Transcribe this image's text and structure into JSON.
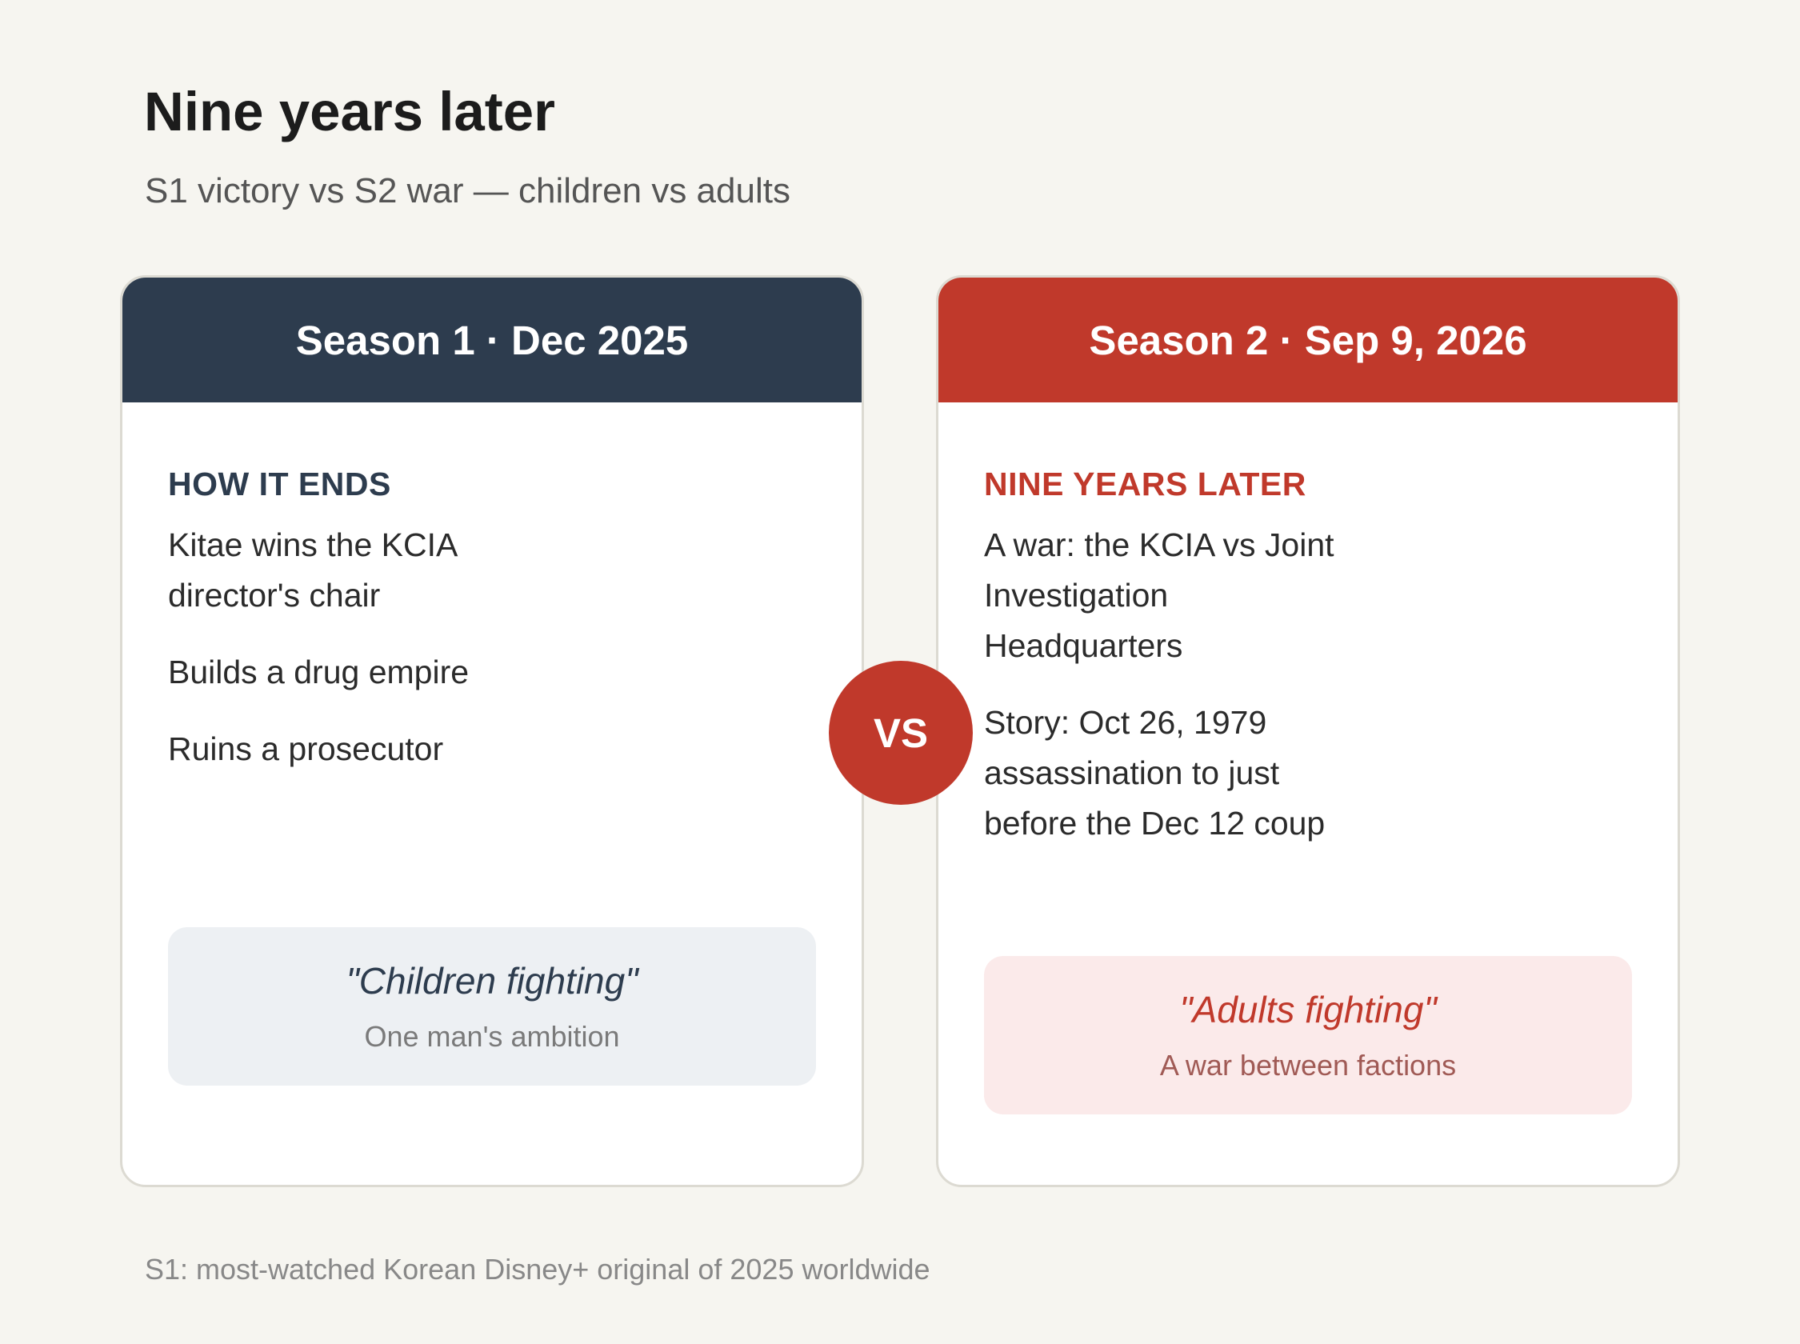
{
  "title": "Nine years later",
  "subtitle": "S1 victory vs S2 war — children vs adults",
  "season1": {
    "header": "Season 1 · Dec 2025",
    "section_label": "HOW IT ENDS",
    "points": [
      "Kitae wins the KCIA director's chair",
      "Builds a drug empire",
      "Ruins a prosecutor"
    ],
    "quote": "\"Children fighting\"",
    "quote_sub": "One man's ambition"
  },
  "season2": {
    "header": "Season 2 · Sep 9, 2026",
    "section_label": "NINE YEARS LATER",
    "points": [
      "A war: the KCIA vs Joint Investigation Headquarters",
      "Story: Oct 26, 1979 assassination to just before the Dec 12 coup"
    ],
    "quote": "\"Adults fighting\"",
    "quote_sub": "A war between factions"
  },
  "vs_label": "VS",
  "footer": "S1: most-watched Korean Disney+ original of 2025 worldwide",
  "colors": {
    "season1_accent": "#2d3c4e",
    "season2_accent": "#c0392b",
    "background": "#f6f5f0"
  }
}
